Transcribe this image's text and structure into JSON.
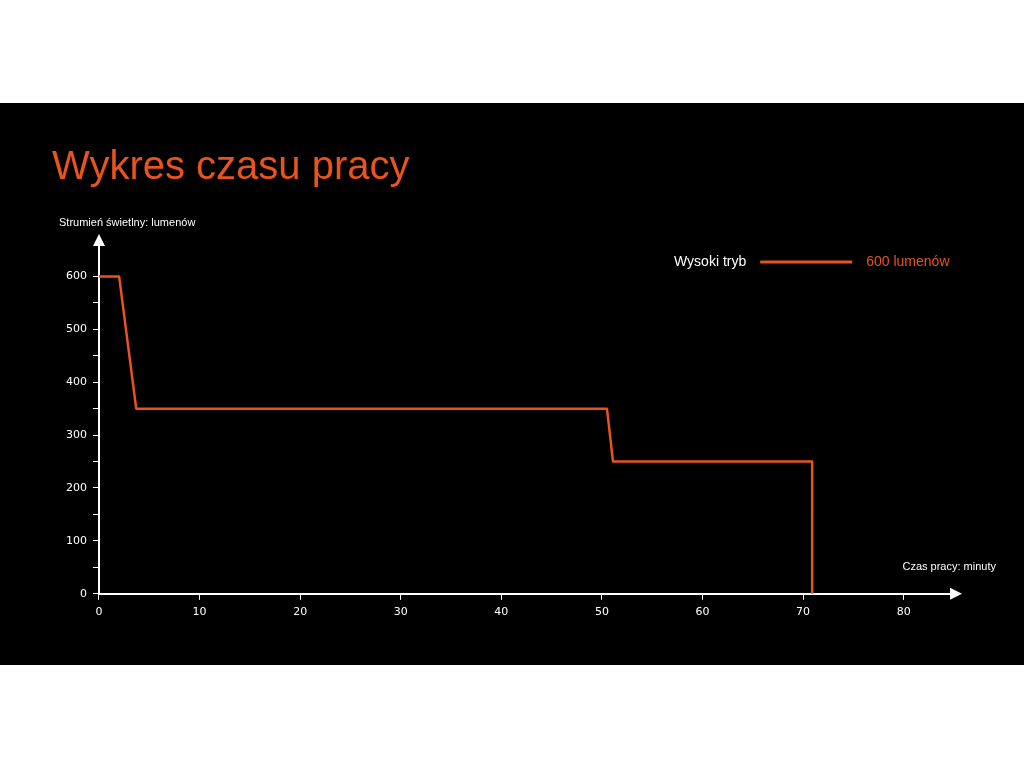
{
  "chart_data": {
    "type": "line",
    "title": "Wykres czasu pracy",
    "xlabel": "Czas pracy: minuty",
    "ylabel": "Strumień świetlny: lumenów",
    "x": [
      0,
      2,
      3.7,
      50.5,
      51.1,
      70.9,
      70.9
    ],
    "series": [
      {
        "name": "Wysoki tryb",
        "color": "#e8541c",
        "values": [
          600,
          600,
          350,
          350,
          250,
          250,
          0
        ]
      }
    ],
    "annotations": [
      "600 lumenów"
    ],
    "xlim": [
      0,
      85
    ],
    "xticks": [
      0,
      10,
      20,
      30,
      40,
      50,
      60,
      70,
      80
    ],
    "ylim": [
      0,
      665
    ],
    "yticks": [
      0,
      {
        "value": 50,
        "label": null
      },
      100,
      {
        "value": 150,
        "label": null
      },
      200,
      {
        "value": 250,
        "label": null
      },
      300,
      {
        "value": 350,
        "label": null
      },
      400,
      {
        "value": 450,
        "label": null
      },
      500,
      {
        "value": 550,
        "label": null
      },
      600
    ],
    "grid": false,
    "legend": "top right",
    "marker": "none",
    "line_style": "solid"
  }
}
